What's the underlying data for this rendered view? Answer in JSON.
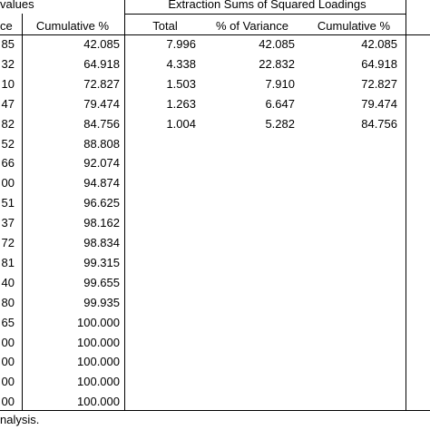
{
  "headers": {
    "initial_group": "values",
    "extraction_group": "Extraction Sums of Squared Loadings",
    "initial_cols": [
      "ce",
      "Cumulative %"
    ],
    "extraction_cols": [
      "Total",
      "% of Variance",
      "Cumulative %"
    ]
  },
  "rows": [
    {
      "a": "85",
      "b": "42.085",
      "c": "7.996",
      "d": "42.085",
      "e": "42.085"
    },
    {
      "a": "32",
      "b": "64.918",
      "c": "4.338",
      "d": "22.832",
      "e": "64.918"
    },
    {
      "a": "10",
      "b": "72.827",
      "c": "1.503",
      "d": "7.910",
      "e": "72.827"
    },
    {
      "a": "47",
      "b": "79.474",
      "c": "1.263",
      "d": "6.647",
      "e": "79.474"
    },
    {
      "a": "82",
      "b": "84.756",
      "c": "1.004",
      "d": "5.282",
      "e": "84.756"
    },
    {
      "a": "52",
      "b": "88.808",
      "c": "",
      "d": "",
      "e": ""
    },
    {
      "a": "66",
      "b": "92.074",
      "c": "",
      "d": "",
      "e": ""
    },
    {
      "a": "00",
      "b": "94.874",
      "c": "",
      "d": "",
      "e": ""
    },
    {
      "a": "51",
      "b": "96.625",
      "c": "",
      "d": "",
      "e": ""
    },
    {
      "a": "37",
      "b": "98.162",
      "c": "",
      "d": "",
      "e": ""
    },
    {
      "a": "72",
      "b": "98.834",
      "c": "",
      "d": "",
      "e": ""
    },
    {
      "a": "81",
      "b": "99.315",
      "c": "",
      "d": "",
      "e": ""
    },
    {
      "a": "40",
      "b": "99.655",
      "c": "",
      "d": "",
      "e": ""
    },
    {
      "a": "80",
      "b": "99.935",
      "c": "",
      "d": "",
      "e": ""
    },
    {
      "a": "65",
      "b": "100.000",
      "c": "",
      "d": "",
      "e": ""
    },
    {
      "a": "00",
      "b": "100.000",
      "c": "",
      "d": "",
      "e": ""
    },
    {
      "a": "00",
      "b": "100.000",
      "c": "",
      "d": "",
      "e": ""
    },
    {
      "a": "00",
      "b": "100.000",
      "c": "",
      "d": "",
      "e": ""
    },
    {
      "a": "00",
      "b": "100.000",
      "c": "",
      "d": "",
      "e": ""
    }
  ],
  "footnote": "nalysis."
}
